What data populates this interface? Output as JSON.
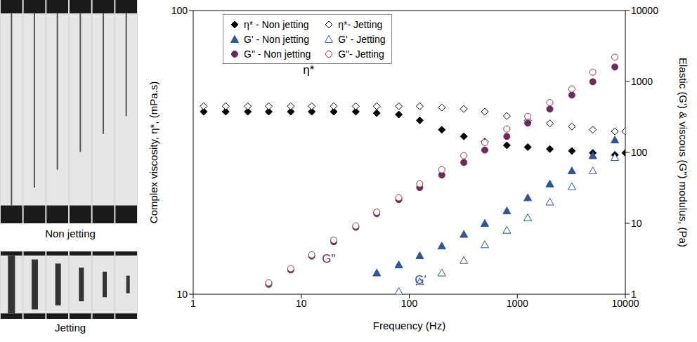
{
  "image_labels": [
    "Non jetting",
    "Jetting"
  ],
  "chart_data": {
    "type": "scatter",
    "log": true,
    "grid": false,
    "legend": "top",
    "x_label": "Frequency (Hz)",
    "y_label": "Complex viscosity, η*, (mPa.s)",
    "y2_label": "Elastic (G') & viscous (G\") modulus, (Pa)",
    "xlim": [
      1,
      10000
    ],
    "xticks": [
      1,
      10,
      100,
      1000,
      10000
    ],
    "ylim": [
      10,
      100
    ],
    "yticks": [
      10,
      100
    ],
    "y2lim": [
      1,
      10000
    ],
    "y2ticks": [
      1,
      10,
      100,
      1000,
      10000
    ],
    "x": [
      1.25,
      2,
      3.2,
      5,
      8,
      12.5,
      20,
      32,
      50,
      80,
      125,
      200,
      320,
      500,
      800,
      1250,
      2000,
      3200,
      5000,
      8000,
      10000
    ],
    "series": [
      {
        "name": "η* - Non jetting",
        "color": "#000000",
        "marker": "diamond",
        "values": [
          44,
          44,
          44,
          44,
          44,
          44,
          44,
          44,
          43.5,
          43,
          41,
          38,
          36,
          34.5,
          33.5,
          33,
          32.5,
          32,
          31.5,
          31,
          31.5
        ]
      },
      {
        "name": "η*- Jetting",
        "color": "#000000",
        "marker": "diamond-open",
        "values": [
          46,
          46,
          46,
          46,
          46,
          46,
          46,
          46,
          46,
          46,
          46,
          45.5,
          45,
          44,
          42.5,
          41,
          40,
          39,
          38,
          37.5,
          37.5
        ]
      },
      {
        "name": "G' - Non jetting",
        "color": "#2f5597",
        "marker": "triangle",
        "axis": "y2",
        "values": [
          null,
          null,
          null,
          null,
          null,
          null,
          null,
          null,
          2,
          2.6,
          3.5,
          4.8,
          7,
          10,
          15,
          23,
          36,
          55,
          90,
          150,
          null
        ]
      },
      {
        "name": "G' - Jetting",
        "color": "#2f5597",
        "marker": "triangle-open",
        "axis": "y2",
        "values": [
          null,
          null,
          null,
          null,
          null,
          null,
          null,
          null,
          null,
          1.1,
          1.5,
          2,
          3,
          5,
          8,
          12,
          20,
          33,
          55,
          85,
          null
        ]
      },
      {
        "name": "G\" - Non jetting",
        "color": "#6d2a5a",
        "marker": "circle",
        "axis": "y2",
        "values": [
          null,
          null,
          null,
          1.38,
          2.2,
          3.45,
          5.5,
          8.8,
          13.7,
          21.6,
          32,
          48,
          72,
          108,
          168,
          259,
          408,
          643,
          990,
          1600,
          null
        ]
      },
      {
        "name": "G\"- Jetting",
        "color": "#8b3a3a",
        "marker": "circle-open",
        "axis": "y2",
        "values": [
          null,
          null,
          null,
          1.45,
          2.3,
          3.6,
          5.8,
          9.2,
          14.4,
          23,
          36,
          57,
          90,
          138,
          214,
          322,
          503,
          784,
          1350,
          2200,
          null
        ]
      }
    ],
    "annotations": [
      {
        "text": "η*",
        "x": 11.7,
        "y": 62,
        "color": "#000000"
      },
      {
        "text": "G\"",
        "x": 18,
        "y": 3.2,
        "axis": "y2",
        "color": "#6d2a5a"
      },
      {
        "text": "G'",
        "x": 127,
        "y": 1.6,
        "axis": "y2",
        "color": "#2f5597"
      }
    ]
  }
}
